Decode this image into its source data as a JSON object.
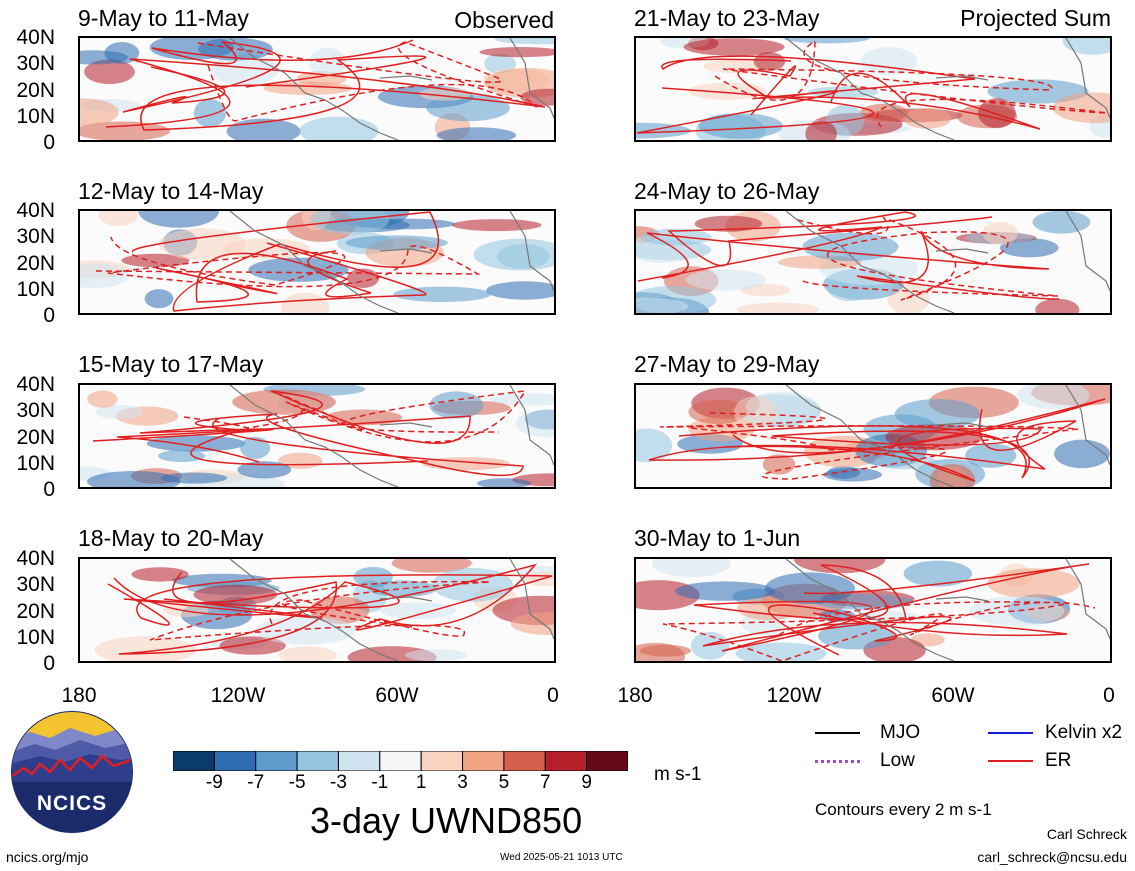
{
  "column_labels": {
    "left": "Observed",
    "right": "Projected Sum"
  },
  "panels_left": [
    {
      "title": "9-May to 11-May"
    },
    {
      "title": "12-May to 14-May"
    },
    {
      "title": "15-May to 17-May"
    },
    {
      "title": "18-May to 20-May"
    }
  ],
  "panels_right": [
    {
      "title": "21-May to 23-May"
    },
    {
      "title": "24-May to 26-May"
    },
    {
      "title": "27-May to 29-May"
    },
    {
      "title": "30-May to 1-Jun"
    }
  ],
  "lat_ticks": [
    "40N",
    "30N",
    "20N",
    "10N",
    "0"
  ],
  "lon_ticks": [
    "180",
    "120W",
    "60W",
    "0"
  ],
  "colorbar": {
    "ticks": [
      "-9",
      "-7",
      "-5",
      "-3",
      "-1",
      "1",
      "3",
      "5",
      "7",
      "9"
    ],
    "colors": [
      "#0b3b6b",
      "#2f6db2",
      "#5d9ccc",
      "#94c4e0",
      "#cfe3f0",
      "#f6f6f6",
      "#fad3c0",
      "#f1a383",
      "#d7604d",
      "#b41f2a",
      "#670a18"
    ],
    "units": "m s-1",
    "title": "3-day UWND850"
  },
  "legend": {
    "items": [
      {
        "label": "MJO",
        "color": "#000000"
      },
      {
        "label": "Kelvin x2",
        "color": "#1a1ad0"
      },
      {
        "label": "Low",
        "color": "#9a4ad8"
      },
      {
        "label": "ER",
        "color": "#e02020"
      }
    ],
    "contour_note": "Contours every 2 m s-1"
  },
  "logo": {
    "text": "NCICS"
  },
  "footer": {
    "url": "ncics.org/mjo",
    "timestamp": "Wed 2025-05-21 1013 UTC",
    "author": "Carl Schreck",
    "email": "carl_schreck@ncsu.edu"
  }
}
